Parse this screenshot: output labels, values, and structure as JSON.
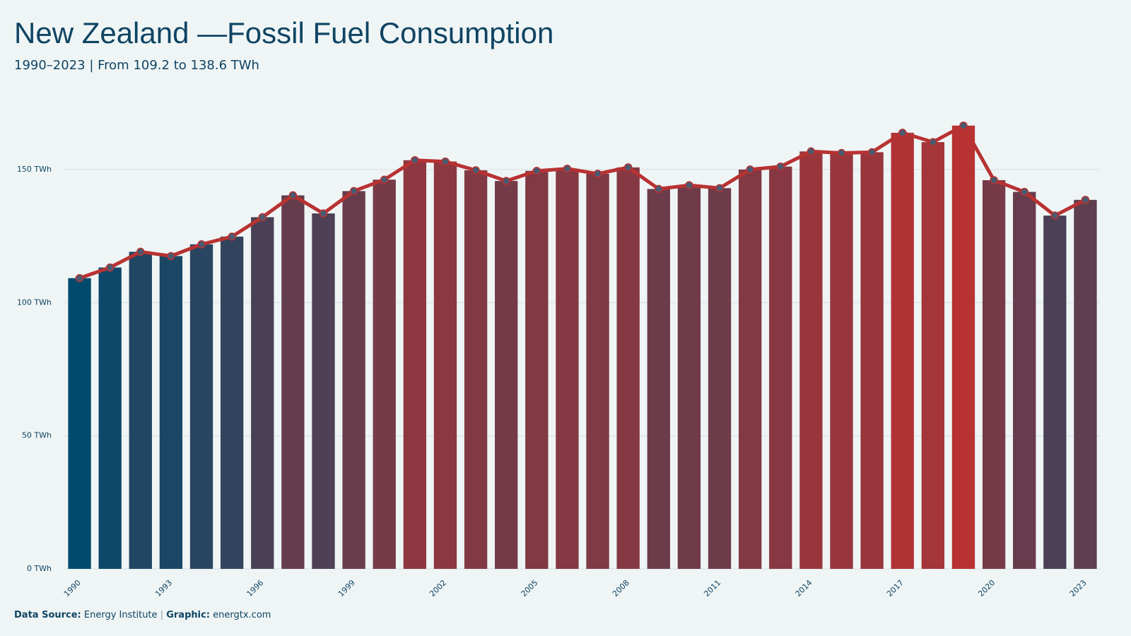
{
  "chart_data": {
    "type": "bar",
    "title": "New Zealand —Fossil Fuel Consumption",
    "subtitle": "1990–2023 | From 109.2 to 138.6 TWh",
    "source_label": "Data Source:",
    "source": "Energy Institute",
    "graphic_label": "Graphic:",
    "graphic": "energtx.com",
    "categories": [
      "1990",
      null,
      null,
      "1993",
      null,
      null,
      "1996",
      null,
      null,
      "1999",
      null,
      null,
      "2002",
      null,
      null,
      "2005",
      null,
      null,
      "2008",
      null,
      null,
      "2011",
      null,
      null,
      "2014",
      null,
      null,
      "2017",
      null,
      null,
      "2020",
      null,
      null,
      "2023"
    ],
    "values": [
      109.2,
      113.2,
      119.1,
      117.5,
      121.9,
      124.8,
      132.1,
      140.3,
      133.5,
      141.9,
      146.2,
      153.5,
      153.0,
      149.7,
      145.7,
      149.5,
      150.3,
      148.4,
      150.8,
      142.7,
      144.1,
      143.0,
      150.0,
      151.1,
      156.8,
      156.2,
      156.5,
      163.8,
      160.3,
      166.5,
      146.0,
      141.6,
      132.7,
      138.6
    ],
    "colors": {
      "low": "#004a6e",
      "high": "#b83232"
    },
    "line_color": "#b83232",
    "marker_color": "#4a5a70",
    "ylim": [
      0,
      172
    ],
    "yticks": [
      {
        "value": 0,
        "label": "0 TWh"
      },
      {
        "value": 50,
        "label": "50 TWh"
      },
      {
        "value": 100,
        "label": "100 TWh"
      },
      {
        "value": 150,
        "label": "150 TWh"
      }
    ],
    "grid": true
  }
}
